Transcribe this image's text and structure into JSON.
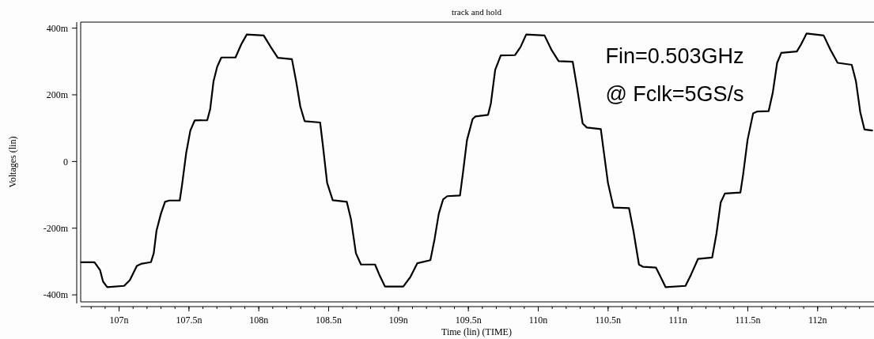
{
  "chart_data": {
    "type": "line",
    "title": "track and hold",
    "xlabel": "Time (lin) (TIME)",
    "ylabel": "Voltages (lin)",
    "annotations": [
      "Fin=0.503GHz",
      "@ Fclk=5GS/s"
    ],
    "xlim": [
      106.725,
      112.392
    ],
    "ylim": [
      -421,
      418
    ],
    "xticks": [
      {
        "value": 107,
        "label": "107n"
      },
      {
        "value": 107.5,
        "label": "107.5n"
      },
      {
        "value": 108,
        "label": "108n"
      },
      {
        "value": 108.5,
        "label": "108.5n"
      },
      {
        "value": 109,
        "label": "109n"
      },
      {
        "value": 109.5,
        "label": "109.5n"
      },
      {
        "value": 110,
        "label": "110n"
      },
      {
        "value": 110.5,
        "label": "110.5n"
      },
      {
        "value": 111,
        "label": "111n"
      },
      {
        "value": 111.5,
        "label": "111.5n"
      },
      {
        "value": 112,
        "label": "112n"
      }
    ],
    "yticks": [
      {
        "value": -400,
        "label": "-400m"
      },
      {
        "value": -200,
        "label": "-200m"
      },
      0,
      {
        "value": 200,
        "label": "200m"
      },
      {
        "value": 400,
        "label": "400m"
      }
    ],
    "grid": false,
    "marker": "none",
    "line_style": "solid",
    "series": [
      {
        "color": "#000000",
        "x": [
          106.728,
          106.824,
          106.864,
          106.885,
          106.915,
          107.036,
          107.077,
          107.127,
          107.157,
          107.228,
          107.248,
          107.268,
          107.299,
          107.329,
          107.359,
          107.434,
          107.45,
          107.48,
          107.51,
          107.541,
          107.631,
          107.652,
          107.676,
          107.702,
          107.732,
          107.833,
          107.874,
          107.914,
          108.035,
          108.086,
          108.136,
          108.237,
          108.267,
          108.297,
          108.328,
          108.439,
          108.459,
          108.489,
          108.529,
          108.63,
          108.66,
          108.695,
          108.731,
          108.832,
          108.862,
          108.903,
          109.034,
          109.084,
          109.135,
          109.228,
          109.258,
          109.288,
          109.319,
          109.349,
          109.44,
          109.46,
          109.49,
          109.53,
          109.55,
          109.641,
          109.661,
          109.692,
          109.732,
          109.833,
          109.873,
          109.914,
          110.045,
          110.096,
          110.146,
          110.247,
          110.277,
          110.318,
          110.348,
          110.448,
          110.469,
          110.499,
          110.539,
          110.65,
          110.681,
          110.721,
          110.751,
          110.842,
          110.872,
          110.912,
          111.054,
          111.094,
          111.144,
          111.245,
          111.276,
          111.306,
          111.336,
          111.447,
          111.467,
          111.498,
          111.538,
          111.568,
          111.649,
          111.679,
          111.71,
          111.74,
          111.851,
          111.881,
          111.921,
          112.043,
          112.093,
          112.143,
          112.244,
          112.274,
          112.305,
          112.335,
          112.39
        ],
        "values": [
          -302,
          -302,
          -326,
          -360,
          -377,
          -373,
          -356,
          -313,
          -307,
          -302,
          -275,
          -207,
          -157,
          -121,
          -117,
          -117,
          -72,
          25,
          93,
          123,
          124,
          157,
          241,
          284,
          312,
          312,
          351,
          381,
          378,
          343,
          311,
          307,
          241,
          165,
          121,
          117,
          47,
          -64,
          -116,
          -121,
          -174,
          -275,
          -309,
          -309,
          -339,
          -375,
          -375,
          -347,
          -305,
          -296,
          -233,
          -157,
          -114,
          -104,
          -102,
          -38,
          64,
          127,
          135,
          140,
          174,
          275,
          318,
          319,
          343,
          381,
          378,
          334,
          301,
          299,
          224,
          114,
          102,
          97,
          30,
          -64,
          -138,
          -140,
          -207,
          -309,
          -316,
          -318,
          -343,
          -377,
          -373,
          -339,
          -292,
          -288,
          -216,
          -123,
          -96,
          -93,
          -38,
          64,
          144,
          150,
          151,
          207,
          296,
          326,
          330,
          351,
          384,
          378,
          334,
          296,
          290,
          241,
          148,
          96,
          93
        ]
      }
    ]
  }
}
